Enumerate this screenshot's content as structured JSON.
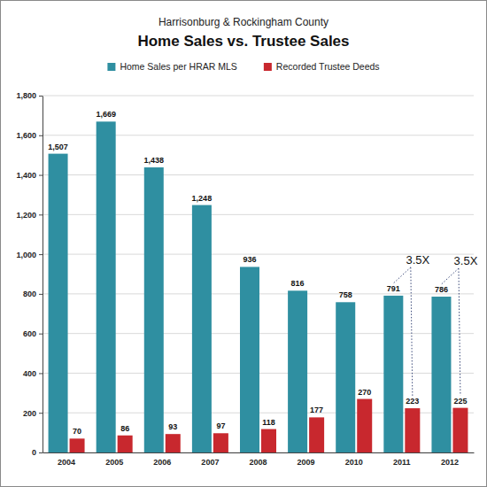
{
  "chart_data": {
    "type": "bar",
    "subtitle": "Harrisonburg & Rockingham County",
    "title": "Home Sales vs. Trustee Sales",
    "categories": [
      "2004",
      "2005",
      "2006",
      "2007",
      "2008",
      "2009",
      "2010",
      "2011",
      "2012"
    ],
    "series": [
      {
        "name": "Home Sales per HRAR MLS",
        "color": "#2f8fa1",
        "values": [
          1507,
          1669,
          1438,
          1248,
          936,
          816,
          758,
          791,
          786
        ],
        "value_labels": [
          "1,507",
          "1,669",
          "1,438",
          "1,248",
          "936",
          "816",
          "758",
          "791",
          "786"
        ]
      },
      {
        "name": "Recorded Trustee Deeds",
        "color": "#c8282e",
        "values": [
          70,
          86,
          93,
          97,
          118,
          177,
          270,
          223,
          225
        ],
        "value_labels": [
          "70",
          "86",
          "93",
          "97",
          "118",
          "177",
          "270",
          "223",
          "225"
        ]
      }
    ],
    "ylim": [
      0,
      1800
    ],
    "yticks": [
      0,
      200,
      400,
      600,
      800,
      {
        "value": 1000,
        "label": "1,000"
      },
      {
        "value": 1200,
        "label": "1,200"
      },
      {
        "value": 1400,
        "label": "1,400"
      },
      {
        "value": 1600,
        "label": "1,600"
      },
      {
        "value": 1800,
        "label": "1,800"
      }
    ],
    "grid": true,
    "legend": "top",
    "data_labels": true,
    "annotations": [
      {
        "text": "3.5X",
        "category": "2011"
      },
      {
        "text": "3.5X",
        "category": "2012"
      }
    ]
  }
}
